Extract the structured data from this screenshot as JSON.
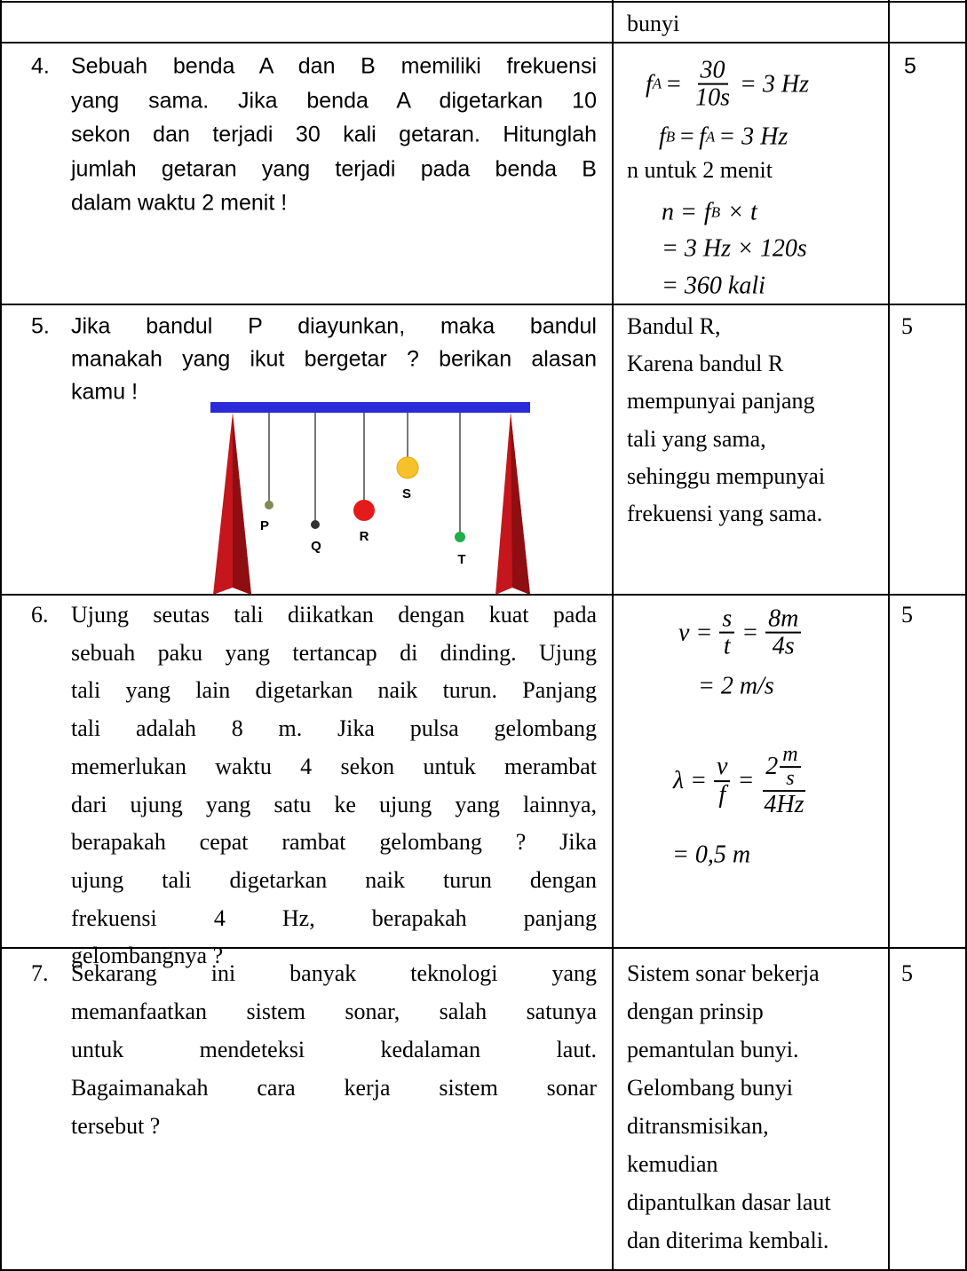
{
  "table": {
    "rows": [
      {
        "answer": [
          "bunyi"
        ]
      },
      {
        "number": "4.",
        "question": [
          "Sebuah benda A dan B memiliki frekuensi",
          "yang sama. Jika benda A digetarkan 10",
          "sekon dan terjadi 30 kali getaran. Hitunglah",
          "jumlah getaran yang terjadi pada benda B",
          "dalam waktu 2 menit !"
        ],
        "answer": [
          [
            {
              "base": "f",
              "sub": "A"
            },
            "=",
            {
              "num": "30",
              "den": "10s"
            },
            "= 3 Hz"
          ],
          [
            {
              "base": "f",
              "sub": "B"
            },
            "=",
            {
              "base": "f",
              "sub": "A"
            },
            "= 3 Hz"
          ],
          [
            "n untuk 2 menit"
          ],
          [
            "n =",
            {
              "base": "f",
              "sub": "B"
            },
            "× t"
          ],
          [
            "= 3 Hz × 120s"
          ],
          [
            "= 360 kali"
          ]
        ],
        "score": "5"
      },
      {
        "number": "5.",
        "question": [
          "Jika bandul P diayunkan, maka bandul",
          "manakah yang ikut bergetar ? berikan alasan",
          "kamu !"
        ],
        "figure": {
          "labels": [
            "P",
            "Q",
            "R",
            "S",
            "T"
          ]
        },
        "answer": [
          "Bandul R,",
          "Karena bandul R",
          "mempunyai panjang",
          "tali yang sama,",
          "sehinggu mempunyai",
          "frekuensi yang sama."
        ],
        "score": "5"
      },
      {
        "number": "6.",
        "question": [
          "Ujung seutas tali diikatkan dengan kuat pada",
          "sebuah paku yang tertancap di dinding. Ujung",
          "tali yang lain digetarkan naik turun. Panjang",
          "tali adalah 8 m. Jika pulsa gelombang",
          "memerlukan waktu 4 sekon untuk merambat",
          "dari ujung yang satu ke ujung yang lainnya,",
          "berapakah cepat rambat gelombang ? Jika",
          "ujung tali digetarkan naik turun dengan",
          "frekuensi 4 Hz, berapakah panjang",
          "gelombangnya ?"
        ],
        "answer": [
          [
            "v =",
            {
              "num": "s",
              "den": "t"
            },
            "=",
            {
              "num": "8m",
              "den": "4s"
            }
          ],
          [
            "= 2 m/s"
          ],
          [
            "λ =",
            {
              "num": "v",
              "den": "f"
            },
            "=",
            {
              "num": [
                "2",
                {
                  "num": "m",
                  "den": "s"
                }
              ],
              "den": "4Hz"
            }
          ],
          [
            "= 0,5 m"
          ]
        ],
        "score": "5"
      },
      {
        "number": "7.",
        "question": [
          "Sekarang ini banyak teknologi yang",
          "memanfaatkan sistem sonar, salah satunya",
          "untuk mendeteksi kedalaman laut.",
          "Bagaimanakah cara kerja sistem sonar",
          "tersebut ?"
        ],
        "answer": [
          "Sistem sonar bekerja",
          "dengan prinsip",
          "pemantulan bunyi.",
          "Gelombang bunyi",
          "ditransmisikan,",
          "kemudian",
          "dipantulkan dasar laut",
          "dan diterima kembali."
        ],
        "score": "5"
      }
    ]
  }
}
